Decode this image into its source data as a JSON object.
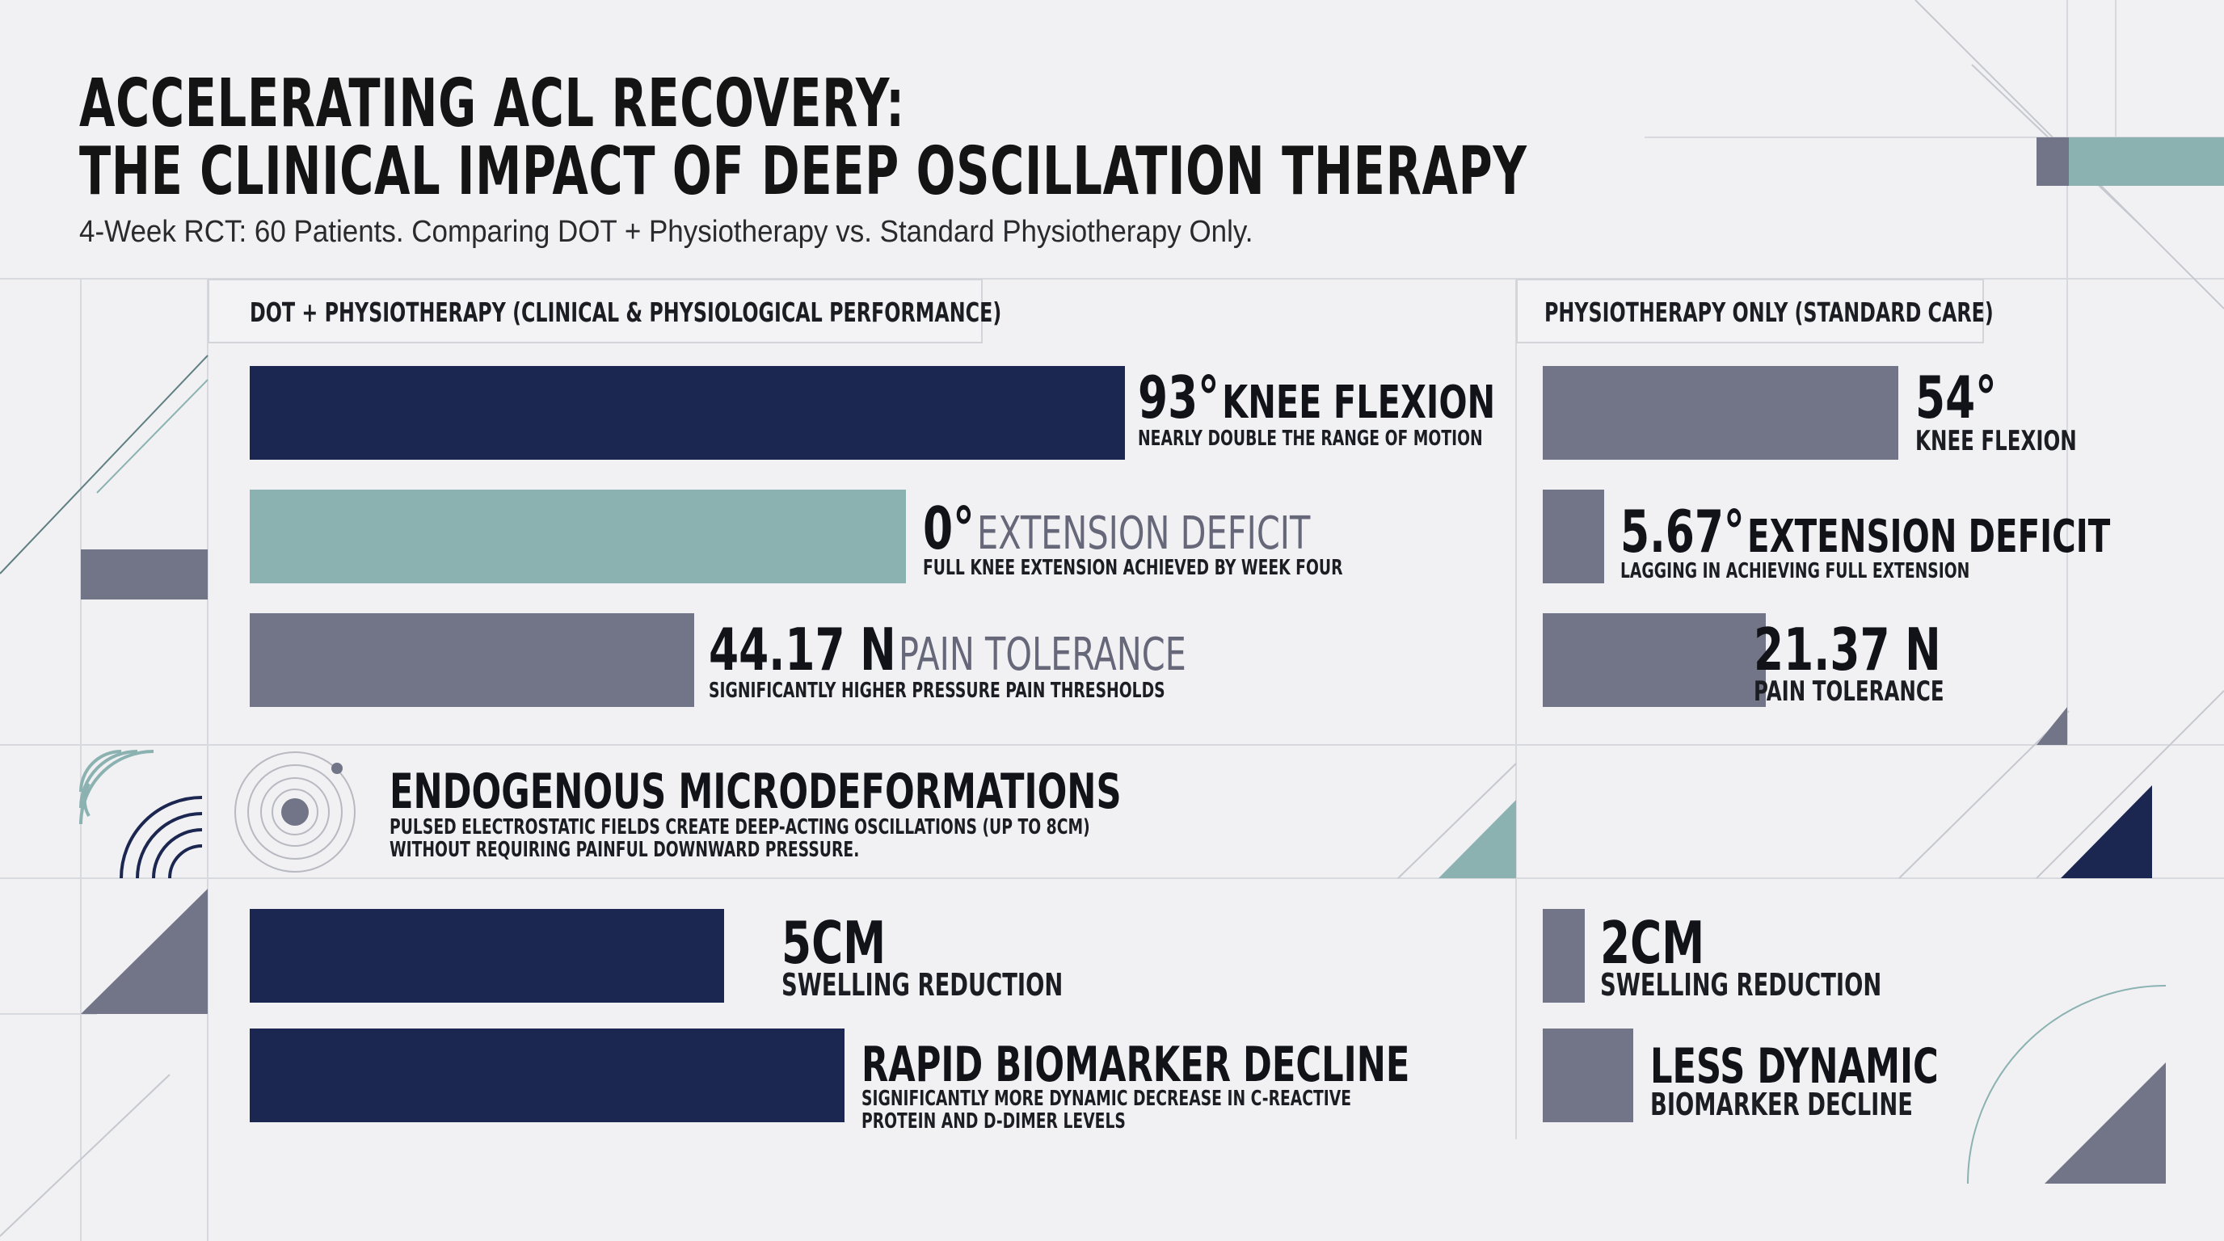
{
  "header": {
    "title_line1": "ACCELERATING ACL RECOVERY:",
    "title_line2": "THE CLINICAL IMPACT OF DEEP OSCILLATION THERAPY",
    "subtitle": "4-Week RCT: 60 Patients. Comparing DOT + Physiotherapy vs. Standard Physiotherapy Only."
  },
  "columns": {
    "dot": "DOT + PHYSIOTHERAPY (CLINICAL & PHYSIOLOGICAL PERFORMANCE)",
    "physio": "PHYSIOTHERAPY ONLY (STANDARD CARE)"
  },
  "dot_metrics": {
    "flexion": {
      "value": "93°",
      "label": "KNEE FLEXION",
      "note": "NEARLY DOUBLE THE RANGE OF MOTION"
    },
    "extension": {
      "value": "0°",
      "label": "EXTENSION DEFICIT",
      "note": "FULL KNEE EXTENSION ACHIEVED BY WEEK FOUR"
    },
    "pain": {
      "value": "44.17 N",
      "label": "PAIN TOLERANCE",
      "note": "SIGNIFICANTLY HIGHER PRESSURE PAIN THRESHOLDS"
    },
    "swelling": {
      "value": "5CM",
      "label": "SWELLING REDUCTION"
    },
    "biomarker": {
      "value": "RAPID BIOMARKER DECLINE",
      "note_line1": "SIGNIFICANTLY MORE DYNAMIC DECREASE IN C-REACTIVE",
      "note_line2": "PROTEIN AND D-DIMER LEVELS"
    }
  },
  "physio_metrics": {
    "flexion": {
      "value": "54°",
      "label": "KNEE FLEXION"
    },
    "extension": {
      "value": "5.67°",
      "label": "EXTENSION DEFICIT",
      "note": "LAGGING IN ACHIEVING FULL EXTENSION"
    },
    "pain": {
      "value": "21.37 N",
      "label": "PAIN TOLERANCE"
    },
    "swelling": {
      "value": "2CM",
      "label": "SWELLING REDUCTION"
    },
    "biomarker": {
      "value": "LESS DYNAMIC",
      "label": "BIOMARKER DECLINE"
    }
  },
  "mechanism": {
    "title": "ENDOGENOUS MICRODEFORMATIONS",
    "line1": "PULSED ELECTROSTATIC FIELDS CREATE DEEP-ACTING OSCILLATIONS (UP TO 8CM)",
    "line2": "WITHOUT REQUIRING PAINFUL DOWNWARD PRESSURE."
  },
  "chart_data": {
    "type": "bar",
    "series": [
      {
        "name": "DOT + PHYSIOTHERAPY (CLINICAL & PHYSIOLOGICAL PERFORMANCE)",
        "color": "#1b2750"
      },
      {
        "name": "PHYSIOTHERAPY ONLY (STANDARD CARE)",
        "color": "#727587"
      }
    ],
    "metrics": [
      {
        "category": "KNEE FLEXION",
        "dot": 93,
        "physio": 54,
        "unit": "°"
      },
      {
        "category": "EXTENSION DEFICIT",
        "dot": 0,
        "physio": 5.67,
        "unit": "°"
      },
      {
        "category": "PAIN TOLERANCE",
        "dot": 44.17,
        "physio": 21.37,
        "unit": "N"
      },
      {
        "category": "SWELLING REDUCTION",
        "dot": 5,
        "physio": 2,
        "unit": "CM"
      }
    ],
    "colors": {
      "navy": "#1b2750",
      "teal": "#8bb2b1",
      "slate": "#727587"
    }
  }
}
